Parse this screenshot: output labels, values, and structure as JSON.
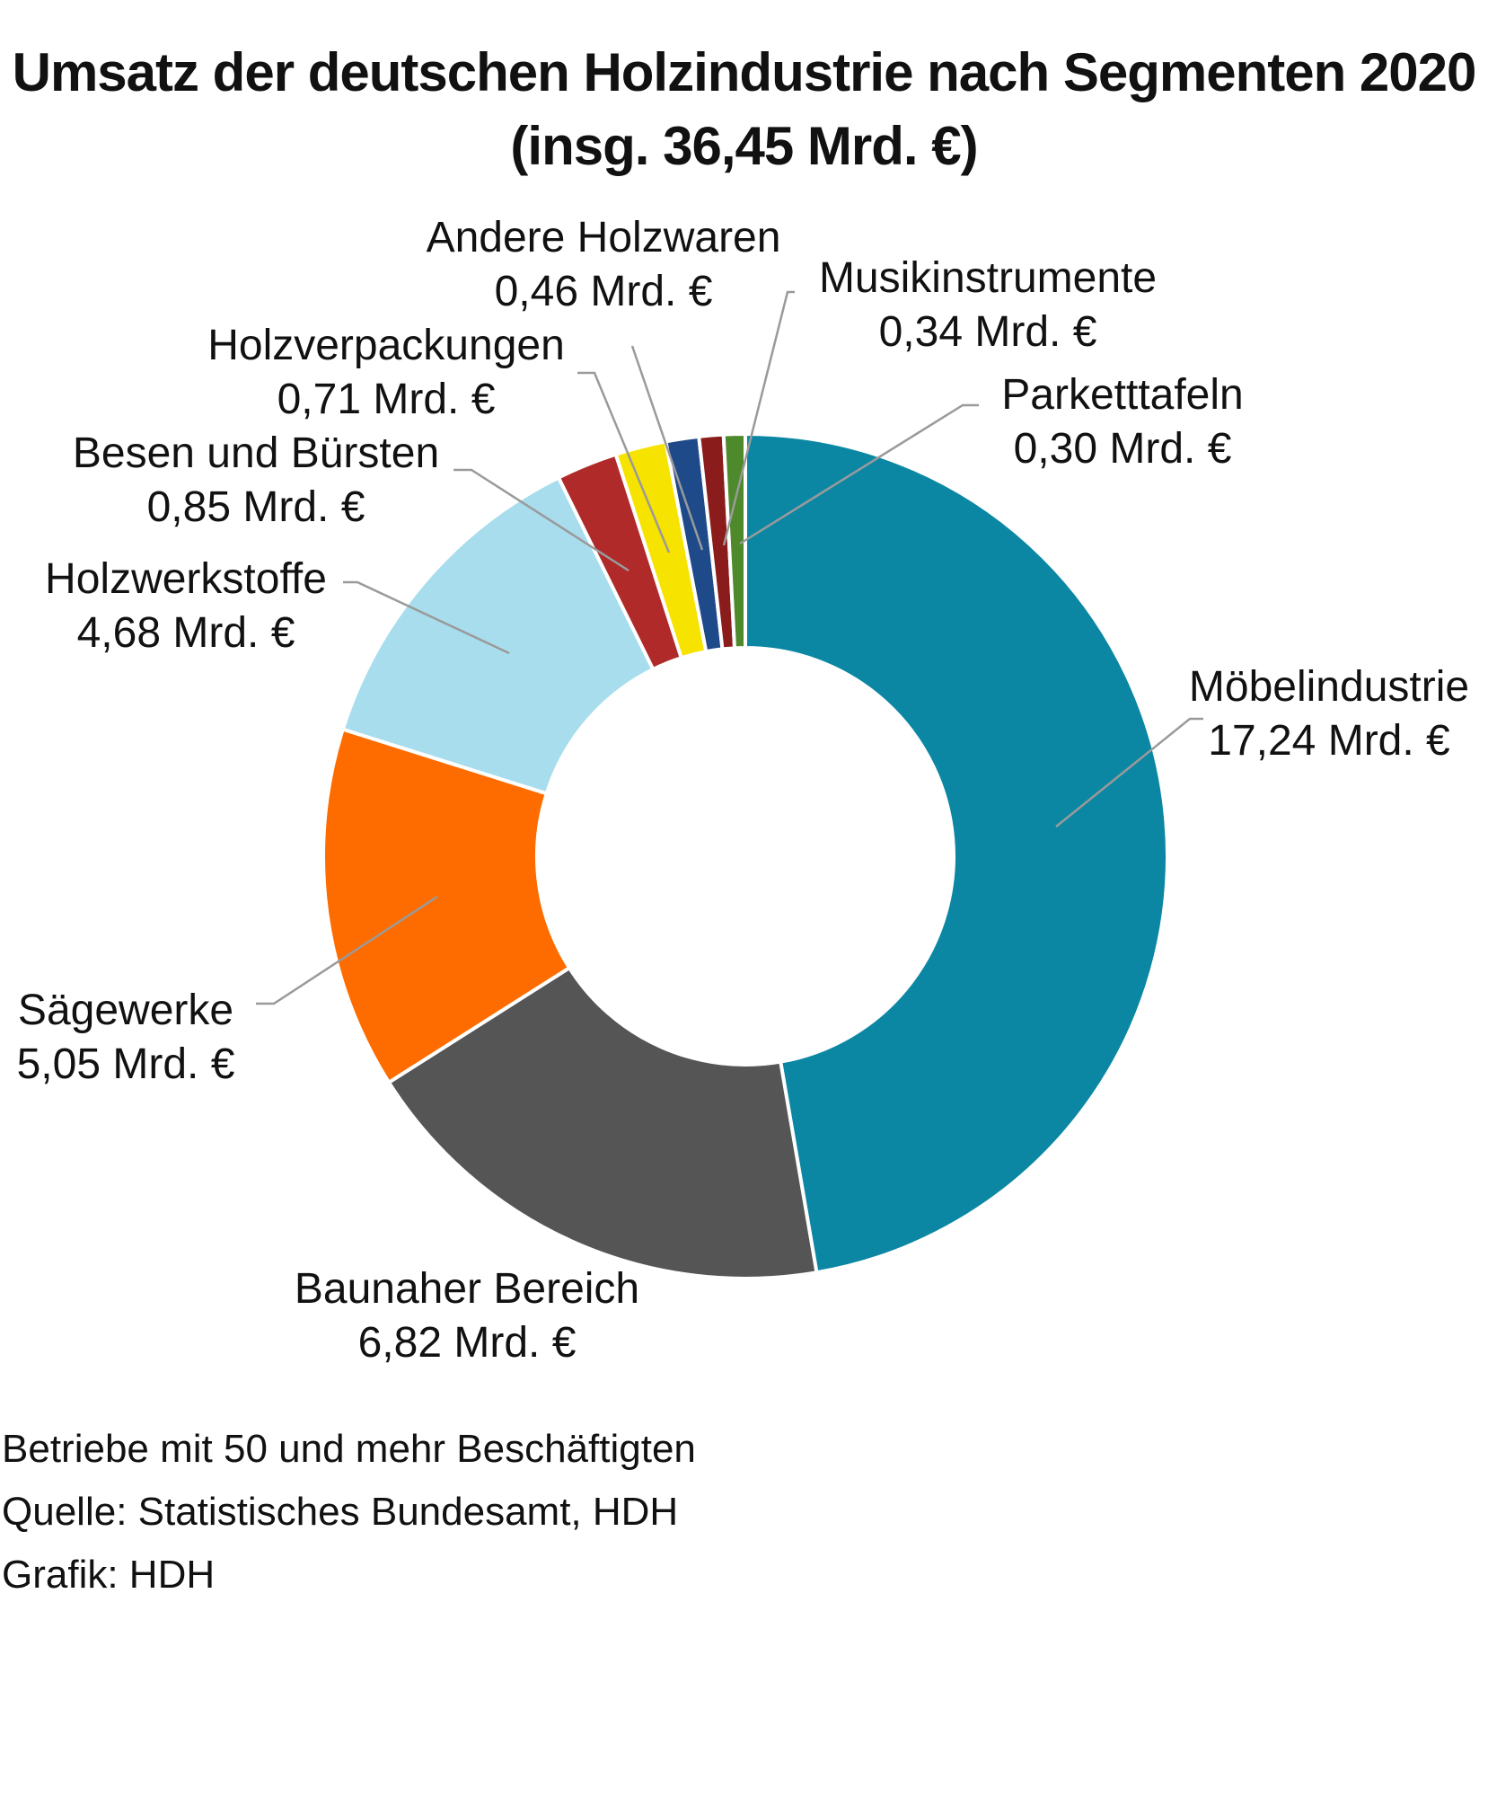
{
  "title": {
    "line1": "Umsatz der deutschen Holzindustrie nach Segmenten 2020",
    "line2": "(insg. 36,45 Mrd. €)"
  },
  "chart_data": {
    "type": "pie",
    "variant": "donut",
    "title": "Umsatz der deutschen Holzindustrie nach Segmenten 2020 (insg. 36,45 Mrd. €)",
    "unit": "Mrd. €",
    "total": 36.45,
    "categories": [
      "Möbelindustrie",
      "Baunaher Bereich",
      "Sägewerke",
      "Holzwerkstoffe",
      "Besen und Bürsten",
      "Holzverpackungen",
      "Andere Holzwaren",
      "Musikinstrumente",
      "Parketttafeln"
    ],
    "values": [
      17.24,
      6.82,
      5.05,
      4.68,
      0.85,
      0.71,
      0.46,
      0.34,
      0.3
    ],
    "value_labels": [
      "17,24 Mrd. €",
      "6,82 Mrd. €",
      "5,05 Mrd. €",
      "4,68 Mrd. €",
      "0,85 Mrd. €",
      "0,71 Mrd. €",
      "0,46 Mrd. €",
      "0,34 Mrd. €",
      "0,30 Mrd. €"
    ],
    "colors": [
      "#0b87a4",
      "#555555",
      "#fe6c00",
      "#a8ddee",
      "#b02a2a",
      "#f7e300",
      "#1f4a8a",
      "#8a1c1c",
      "#4e8a2c"
    ],
    "start": "12 o'clock",
    "direction": "clockwise"
  },
  "footer": {
    "line1": "Betriebe mit 50 und mehr Beschäftigten",
    "line2": "Quelle: Statistisches Bundesamt, HDH",
    "line3": "Grafik: HDH"
  }
}
